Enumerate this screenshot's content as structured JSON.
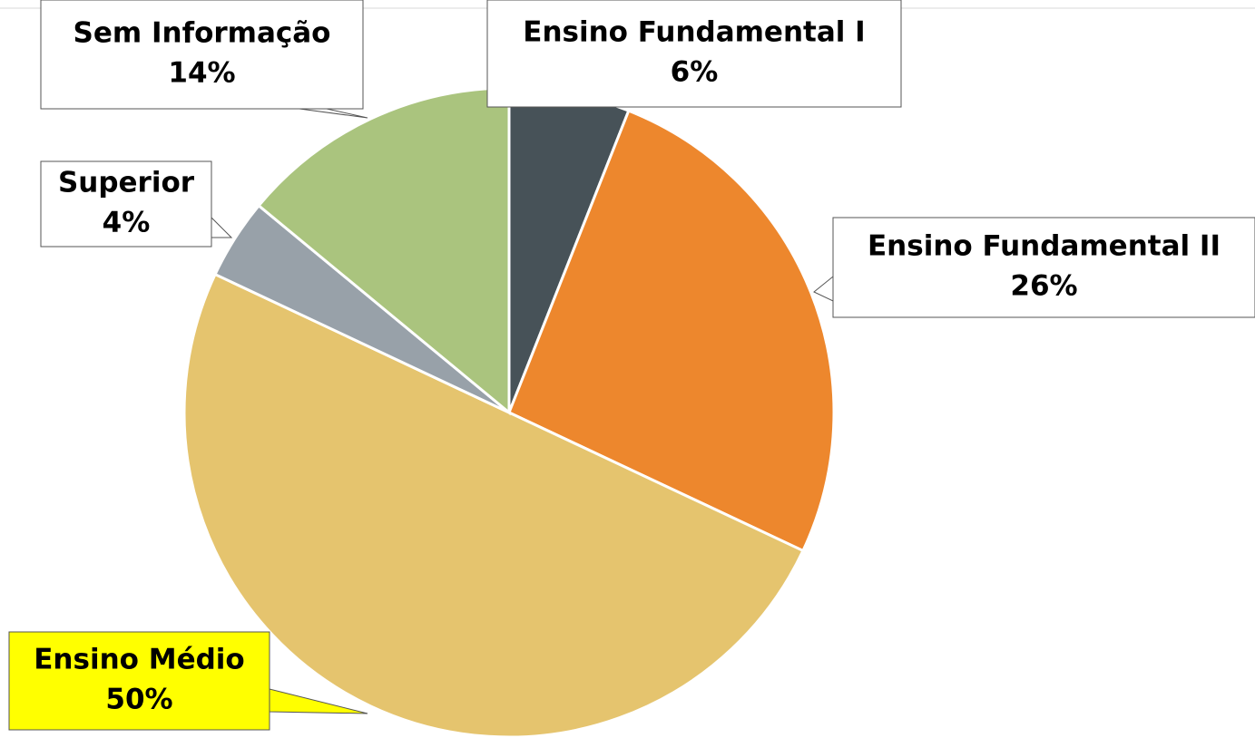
{
  "chart_data": {
    "type": "pie",
    "categories": [
      "Ensino Fundamental I",
      "Ensino Fundamental II",
      "Ensino Médio",
      "Superior",
      "Sem Informação"
    ],
    "values": [
      6,
      26,
      50,
      4,
      14
    ],
    "value_labels": [
      "6%",
      "26%",
      "50%",
      "4%",
      "14%"
    ],
    "colors": [
      "#475258",
      "#ed872d",
      "#e5c46e",
      "#98a1a9",
      "#aac47e"
    ],
    "label_colors": [
      "#ffffff",
      "#ffffff",
      "#ffff00",
      "#ffffff",
      "#ffffff"
    ]
  }
}
